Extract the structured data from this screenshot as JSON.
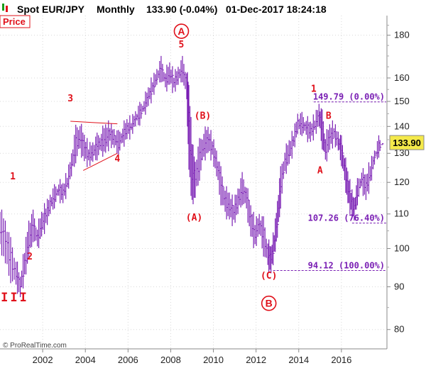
{
  "header": {
    "instrument": "Spot EUR/JPY",
    "period": "Monthly",
    "quote": "133.90 (-0.04%)",
    "timestamp": "01-Dec-2017 18:24:18",
    "panel_label": "Price"
  },
  "copyright": "© ProRealTime.com",
  "colors": {
    "bars": "#7a1fb4",
    "wave": "#e0101a",
    "fib": "#7a1fb4",
    "grid": "#c8c8c8",
    "price_tag_bg": "#f4e94a"
  },
  "chart_data": {
    "type": "bar",
    "y_scale": "log",
    "ylim": [
      76,
      190
    ],
    "xlim": [
      2000.0,
      2018.1
    ],
    "y_ticks": [
      80,
      90,
      100,
      110,
      120,
      130,
      140,
      150,
      160,
      180
    ],
    "x_ticks": [
      2002,
      2004,
      2006,
      2008,
      2010,
      2012,
      2014,
      2016
    ],
    "last_price": "133.90",
    "series": [
      {
        "bars": [
          [
            2000.0,
            112,
            100
          ],
          [
            2000.25,
            108,
            96
          ],
          [
            2000.5,
            102,
            92
          ],
          [
            2000.75,
            97,
            90
          ],
          [
            2000.95,
            92,
            88
          ],
          [
            2001.15,
            100,
            92
          ],
          [
            2001.35,
            108,
            97
          ],
          [
            2001.55,
            110,
            103
          ],
          [
            2001.75,
            106,
            100
          ],
          [
            2001.95,
            110,
            104
          ],
          [
            2002.15,
            113,
            106
          ],
          [
            2002.35,
            116,
            110
          ],
          [
            2002.55,
            118,
            113
          ],
          [
            2002.75,
            120,
            115
          ],
          [
            2002.95,
            119,
            114
          ],
          [
            2003.15,
            123,
            117
          ],
          [
            2003.35,
            130,
            122
          ],
          [
            2003.55,
            139,
            128
          ],
          [
            2003.75,
            141,
            131
          ],
          [
            2003.95,
            136,
            128
          ],
          [
            2004.15,
            133,
            126
          ],
          [
            2004.35,
            134,
            127
          ],
          [
            2004.55,
            136,
            129
          ],
          [
            2004.75,
            138,
            130
          ],
          [
            2004.95,
            140,
            131
          ],
          [
            2005.15,
            141,
            133
          ],
          [
            2005.35,
            139,
            132
          ],
          [
            2005.55,
            137,
            130
          ],
          [
            2005.75,
            140,
            133
          ],
          [
            2005.95,
            142,
            136
          ],
          [
            2006.15,
            143,
            137
          ],
          [
            2006.35,
            146,
            140
          ],
          [
            2006.55,
            148,
            142
          ],
          [
            2006.75,
            151,
            145
          ],
          [
            2006.95,
            155,
            149
          ],
          [
            2007.15,
            160,
            152
          ],
          [
            2007.35,
            164,
            157
          ],
          [
            2007.55,
            168,
            160
          ],
          [
            2007.75,
            163,
            155
          ],
          [
            2007.95,
            166,
            158
          ],
          [
            2008.15,
            162,
            154
          ],
          [
            2008.35,
            165,
            157
          ],
          [
            2008.55,
            168,
            160
          ],
          [
            2008.75,
            163,
            150
          ],
          [
            2008.85,
            156,
            125
          ],
          [
            2009.0,
            135,
            113
          ],
          [
            2009.15,
            127,
            115
          ],
          [
            2009.35,
            134,
            122
          ],
          [
            2009.55,
            138,
            128
          ],
          [
            2009.75,
            139,
            131
          ],
          [
            2009.95,
            136,
            128
          ],
          [
            2010.15,
            131,
            122
          ],
          [
            2010.35,
            124,
            114
          ],
          [
            2010.55,
            118,
            110
          ],
          [
            2010.75,
            116,
            109
          ],
          [
            2010.95,
            114,
            107
          ],
          [
            2011.15,
            118,
            110
          ],
          [
            2011.35,
            122,
            114
          ],
          [
            2011.55,
            119,
            111
          ],
          [
            2011.75,
            112,
            104
          ],
          [
            2011.95,
            108,
            100
          ],
          [
            2012.15,
            110,
            104
          ],
          [
            2012.35,
            108,
            99
          ],
          [
            2012.55,
            102,
            95
          ],
          [
            2012.7,
            100,
            94
          ],
          [
            2012.85,
            105,
            98
          ],
          [
            2013.0,
            114,
            103
          ],
          [
            2013.15,
            124,
            113
          ],
          [
            2013.35,
            131,
            123
          ],
          [
            2013.55,
            134,
            127
          ],
          [
            2013.75,
            138,
            131
          ],
          [
            2013.95,
            145,
            137
          ],
          [
            2014.15,
            144,
            138
          ],
          [
            2014.35,
            143,
            136
          ],
          [
            2014.55,
            141,
            135
          ],
          [
            2014.75,
            144,
            137
          ],
          [
            2014.95,
            149,
            140
          ],
          [
            2015.1,
            145,
            133
          ],
          [
            2015.25,
            136,
            127
          ],
          [
            2015.45,
            140,
            132
          ],
          [
            2015.65,
            141,
            134
          ],
          [
            2015.85,
            138,
            131
          ],
          [
            2016.0,
            135,
            127
          ],
          [
            2016.15,
            129,
            120
          ],
          [
            2016.3,
            123,
            114
          ],
          [
            2016.45,
            118,
            110
          ],
          [
            2016.6,
            115,
            108
          ],
          [
            2016.75,
            120,
            114
          ],
          [
            2016.95,
            124,
            118
          ],
          [
            2017.15,
            122,
            115
          ],
          [
            2017.35,
            127,
            119
          ],
          [
            2017.55,
            131,
            126
          ],
          [
            2017.75,
            135,
            130
          ],
          [
            2017.92,
            134.5,
            132.5
          ]
        ]
      }
    ],
    "annotations": {
      "wave_labels": [
        {
          "text": "III",
          "x": 2000.7,
          "y": 86.5,
          "style": "big"
        },
        {
          "text": "1",
          "x": 2000.6,
          "y": 121
        },
        {
          "text": "2",
          "x": 2001.4,
          "y": 97
        },
        {
          "text": "3",
          "x": 2003.3,
          "y": 150
        },
        {
          "text": "4",
          "x": 2005.5,
          "y": 127
        },
        {
          "text": "5",
          "x": 2008.5,
          "y": 174
        },
        {
          "text": "(A)",
          "x": 2009.1,
          "y": 108
        },
        {
          "text": "(B)",
          "x": 2009.5,
          "y": 143
        },
        {
          "text": "(C)",
          "x": 2012.6,
          "y": 92
        },
        {
          "text": "1",
          "x": 2014.7,
          "y": 154
        },
        {
          "text": "A",
          "x": 2015.0,
          "y": 123
        },
        {
          "text": "B",
          "x": 2015.4,
          "y": 143
        }
      ],
      "circled_labels": [
        {
          "text": "A",
          "x": 2008.5,
          "y": 182
        },
        {
          "text": "B",
          "x": 2012.6,
          "y": 86
        }
      ],
      "trendlines": [
        {
          "from": [
            2003.3,
            142
          ],
          "to": [
            2005.5,
            141
          ]
        },
        {
          "from": [
            2003.9,
            124
          ],
          "to": [
            2005.5,
            130
          ]
        }
      ],
      "fib_levels": [
        {
          "label": "149.79 (0.00%)",
          "value": 149.79,
          "x_start": 2014.7
        },
        {
          "label": "107.26 (76.40%)",
          "value": 107.26,
          "x_start": 2016.5
        },
        {
          "label": "94.12 (100.00%)",
          "value": 94.12,
          "x_start": 2012.8
        }
      ]
    }
  }
}
